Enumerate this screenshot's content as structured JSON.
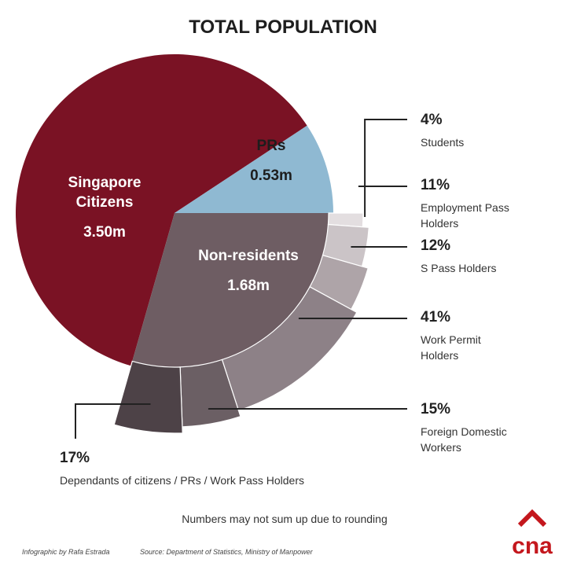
{
  "title": "TOTAL POPULATION",
  "note": "Numbers may not sum up due to rounding",
  "credit_left": "Infographic by Rafa Estrada",
  "credit_right": "Source: Department of Statistics, Ministry of Manpower",
  "logo_text": "cna",
  "colors": {
    "citizens": "#7a1224",
    "prs": "#8fb9d2",
    "nonres": "#6e5d63",
    "line": "#222222",
    "logo": "#c4171d"
  },
  "chart_data": [
    {
      "type": "pie",
      "title": "TOTAL POPULATION",
      "slices": [
        {
          "label": "Singapore Citizens",
          "label_lines": [
            "Singapore",
            "Citizens"
          ],
          "value_label": "3.50m",
          "value": 3.5,
          "color": "#7a1224"
        },
        {
          "label": "PRs",
          "label_lines": [
            "PRs"
          ],
          "value_label": "0.53m",
          "value": 0.53,
          "color": "#8fb9d2"
        },
        {
          "label": "Non-residents",
          "label_lines": [
            "Non-residents"
          ],
          "value_label": "1.68m",
          "value": 1.68,
          "color": "#6e5d63"
        }
      ]
    },
    {
      "type": "pie",
      "breakdown_of": "Non-residents",
      "segments": [
        {
          "label": "Students",
          "label_lines": [
            "Students"
          ],
          "pct_label": "4%",
          "value": 4,
          "color": "#e3dee0"
        },
        {
          "label": "Employment Pass Holders",
          "label_lines": [
            "Employment Pass",
            "Holders"
          ],
          "pct_label": "11%",
          "value": 11,
          "color": "#cbc4c7"
        },
        {
          "label": "S Pass Holders",
          "label_lines": [
            "S Pass Holders"
          ],
          "pct_label": "12%",
          "value": 12,
          "color": "#aea4a8"
        },
        {
          "label": "Work Permit Holders",
          "label_lines": [
            "Work Permit",
            "Holders"
          ],
          "pct_label": "41%",
          "value": 41,
          "color": "#8d8187"
        },
        {
          "label": "Foreign Domestic Workers",
          "label_lines": [
            "Foreign Domestic",
            "Workers"
          ],
          "pct_label": "15%",
          "value": 15,
          "color": "#6b5f64"
        },
        {
          "label": "Dependants of citizens / PRs / Work Pass Holders",
          "label_lines": [
            "Dependants of citizens / PRs / Work Pass Holders"
          ],
          "pct_label": "17%",
          "value": 17,
          "color": "#4d4247"
        }
      ]
    }
  ]
}
